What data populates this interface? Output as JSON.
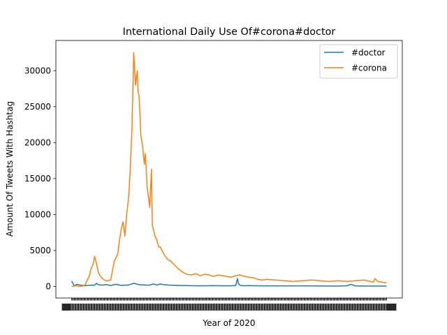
{
  "chart_data": {
    "type": "line",
    "title": "International Daily Use Of#corona#doctor",
    "xlabel": "Year of 2020",
    "ylabel": "Amount Of Tweets With Hashtag",
    "ylim": [
      -1600,
      34200
    ],
    "yticks": [
      0,
      5000,
      10000,
      15000,
      20000,
      25000,
      30000
    ],
    "ytick_labels": [
      "0",
      "5000",
      "10000",
      "15000",
      "20000",
      "25000",
      "30000"
    ],
    "x_index_range": [
      0,
      355
    ],
    "x_tick_count": 356,
    "x_tick_labels_illegible": true,
    "grid": false,
    "legend": "top-right",
    "series": [
      {
        "name": "#doctor",
        "color": "#1f77b4",
        "x": [
          0,
          3,
          6,
          10,
          14,
          18,
          22,
          26,
          28,
          30,
          34,
          40,
          44,
          50,
          56,
          60,
          64,
          70,
          76,
          84,
          88,
          92,
          96,
          100,
          104,
          110,
          120,
          130,
          140,
          150,
          160,
          170,
          180,
          185,
          187,
          188,
          190,
          195,
          200,
          210,
          220,
          240,
          260,
          280,
          300,
          310,
          315,
          320,
          330,
          345,
          355
        ],
        "values": [
          750,
          100,
          300,
          200,
          120,
          150,
          200,
          180,
          450,
          250,
          200,
          250,
          150,
          300,
          150,
          200,
          200,
          450,
          250,
          200,
          200,
          350,
          200,
          350,
          250,
          200,
          150,
          120,
          100,
          100,
          120,
          100,
          100,
          150,
          1100,
          400,
          150,
          100,
          120,
          100,
          80,
          80,
          80,
          70,
          60,
          100,
          300,
          80,
          60,
          60,
          50
        ]
      },
      {
        "name": "#corona",
        "color": "#ff7f0e",
        "x": [
          0,
          5,
          10,
          15,
          20,
          22,
          24,
          26,
          28,
          30,
          32,
          34,
          36,
          38,
          40,
          44,
          48,
          52,
          54,
          56,
          58,
          60,
          62,
          64,
          66,
          68,
          70,
          72,
          74,
          75,
          76,
          77,
          78,
          80,
          82,
          83,
          84,
          85,
          86,
          88,
          90,
          91,
          92,
          94,
          96,
          98,
          100,
          104,
          108,
          112,
          116,
          120,
          125,
          130,
          135,
          140,
          145,
          150,
          155,
          160,
          165,
          170,
          175,
          180,
          185,
          190,
          195,
          200,
          205,
          210,
          215,
          220,
          230,
          240,
          250,
          260,
          270,
          280,
          290,
          300,
          310,
          320,
          330,
          340,
          342,
          345,
          350,
          355
        ],
        "values": [
          0,
          100,
          0,
          200,
          1500,
          2500,
          3000,
          4200,
          3200,
          2000,
          1500,
          1200,
          1000,
          800,
          800,
          900,
          3500,
          4500,
          6500,
          8000,
          9000,
          7000,
          10000,
          12000,
          16000,
          22000,
          32500,
          28000,
          30000,
          27000,
          26500,
          24000,
          21000,
          19500,
          17000,
          18500,
          16500,
          14000,
          13000,
          11000,
          16300,
          8500,
          8000,
          7000,
          6500,
          5500,
          5500,
          4500,
          3800,
          3500,
          3000,
          2500,
          2000,
          1700,
          1600,
          1800,
          1500,
          1700,
          1600,
          1400,
          1600,
          1500,
          1400,
          1300,
          1500,
          1600,
          1400,
          1300,
          1200,
          1000,
          900,
          1000,
          900,
          800,
          700,
          800,
          900,
          800,
          700,
          800,
          700,
          800,
          900,
          600,
          1100,
          700,
          600,
          500
        ]
      }
    ]
  }
}
